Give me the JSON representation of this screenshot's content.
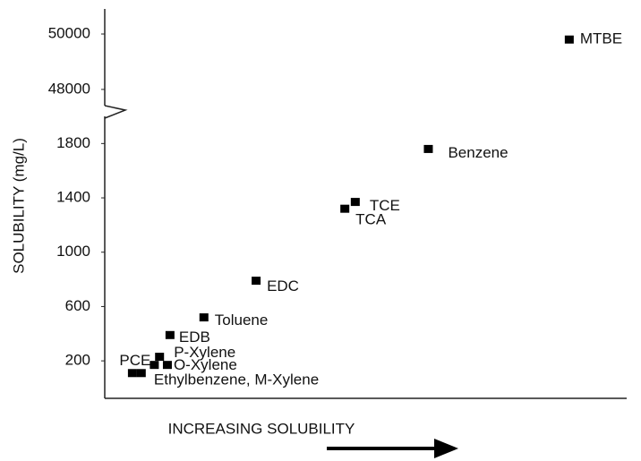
{
  "chart_data": {
    "type": "scatter",
    "ylabel": "SOLUBILITY (mg/L)",
    "xlabel": "INCREASING SOLUBILITY",
    "xlim": [
      0,
      100
    ],
    "y_segments": [
      {
        "ylim": [
          -76,
          2000
        ],
        "yticks": [
          200,
          600,
          1000,
          1400,
          1800
        ]
      },
      {
        "ylim": [
          47350,
          50840
        ],
        "yticks": [
          48000,
          50000
        ]
      }
    ],
    "color": "#000000",
    "labels": [
      "MTBE",
      "Benzene",
      "TCE",
      "TCA",
      "EDC",
      "Toluene",
      "EDB",
      "P-Xylene",
      "O-Xylene",
      "PCE",
      "Ethylbenzene, M-Xylene",
      null
    ],
    "x": [
      89,
      62,
      48,
      46,
      29,
      19,
      12.5,
      10.5,
      12,
      9.5,
      5.3,
      7
    ],
    "y": [
      49800,
      1760,
      1370,
      1320,
      790,
      520,
      390,
      230,
      170,
      170,
      110,
      110
    ]
  }
}
